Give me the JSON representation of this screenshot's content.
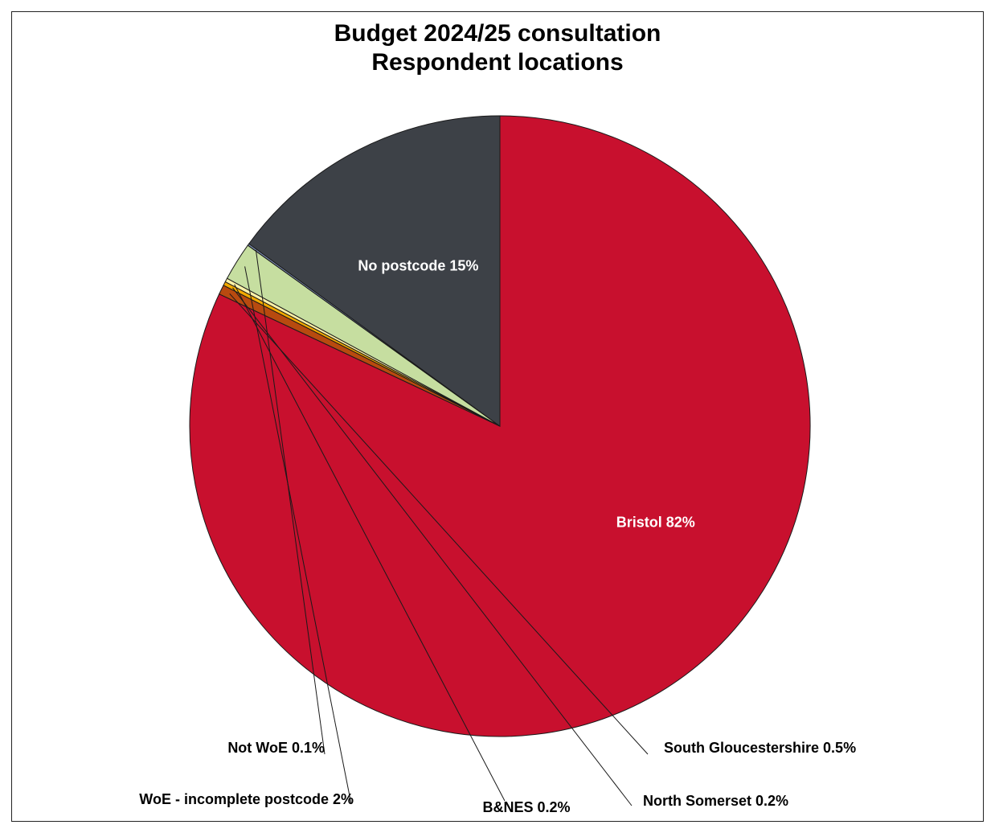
{
  "chart_data": {
    "type": "pie",
    "title": "Budget 2024/25 consultation",
    "subtitle": "Respondent locations",
    "slices": [
      {
        "label": "Bristol",
        "value": 82,
        "display": "Bristol 82%",
        "color": "#c8102e",
        "label_color": "#ffffff"
      },
      {
        "label": "South Gloucestershire",
        "value": 0.5,
        "display": "South Gloucestershire 0.5%",
        "color": "#b84a0f",
        "label_color": "#000000"
      },
      {
        "label": "North Somerset",
        "value": 0.2,
        "display": "North Somerset 0.2%",
        "color": "#f2a900",
        "label_color": "#000000"
      },
      {
        "label": "B&NES",
        "value": 0.2,
        "display": "B&NES 0.2%",
        "color": "#fff2a8",
        "label_color": "#000000"
      },
      {
        "label": "WoE - incomplete postcode",
        "value": 2,
        "display": "WoE - incomplete postcode 2%",
        "color": "#c6dea0",
        "label_color": "#000000"
      },
      {
        "label": "Not WoE",
        "value": 0.1,
        "display": "Not WoE 0.1%",
        "color": "#7a8bb0",
        "label_color": "#000000"
      },
      {
        "label": "No postcode",
        "value": 15,
        "display": "No postcode 15%",
        "color": "#3d4147",
        "label_color": "#ffffff"
      }
    ]
  }
}
